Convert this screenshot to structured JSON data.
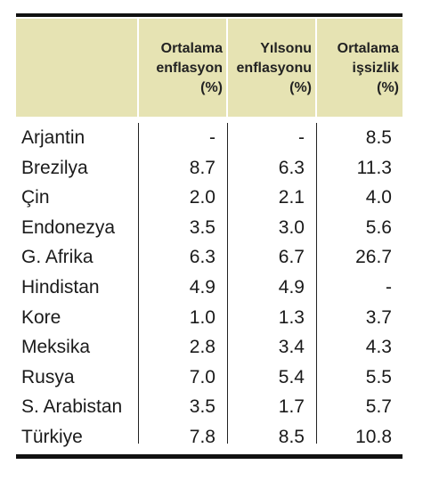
{
  "table": {
    "header": [
      [
        "Ortalama",
        "enflasyon",
        "(%)"
      ],
      [
        "Yılsonu",
        "enflasyonu",
        "(%)"
      ],
      [
        "Ortalama",
        "işsizlik",
        "(%)"
      ]
    ],
    "rows": [
      [
        "Arjantin",
        "-",
        "-",
        "8.5"
      ],
      [
        "Brezilya",
        "8.7",
        "6.3",
        "11.3"
      ],
      [
        "Çin",
        "2.0",
        "2.1",
        "4.0"
      ],
      [
        "Endonezya",
        "3.5",
        "3.0",
        "5.6"
      ],
      [
        "G. Afrika",
        "6.3",
        "6.7",
        "26.7"
      ],
      [
        "Hindistan",
        "4.9",
        "4.9",
        "-"
      ],
      [
        "Kore",
        "1.0",
        "1.3",
        "3.7"
      ],
      [
        "Meksika",
        "2.8",
        "3.4",
        "4.3"
      ],
      [
        "Rusya",
        "7.0",
        "5.4",
        "5.5"
      ],
      [
        "S. Arabistan",
        "3.5",
        "1.7",
        "5.7"
      ],
      [
        "Türkiye",
        "7.8",
        "8.5",
        "10.8"
      ]
    ]
  }
}
